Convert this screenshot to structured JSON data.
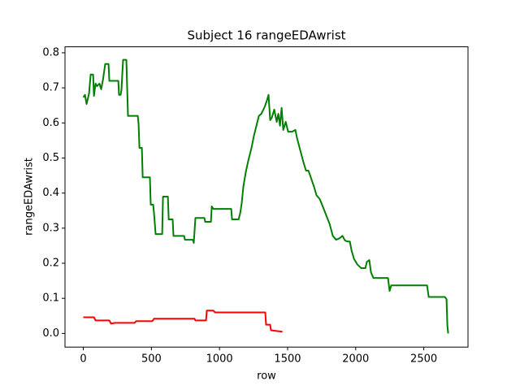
{
  "chart_data": {
    "type": "line",
    "title": "Subject 16 rangeEDAwrist",
    "x_label": "row",
    "y_label": "rangeEDAwrist",
    "xlim": [
      -134.5,
      2824.5
    ],
    "ylim": [
      -0.039,
      0.817
    ],
    "xticks": [
      0,
      500,
      1000,
      1500,
      2000,
      2500
    ],
    "yticks": [
      {
        "value": 0,
        "label": "0.0"
      },
      0.1,
      0.2,
      0.3,
      0.4,
      0.5,
      0.6,
      0.7,
      0.8
    ],
    "grid": false,
    "series": [
      {
        "color": "#008000",
        "x": [
          0,
          12,
          24,
          42,
          54,
          72,
          78,
          90,
          101,
          119,
          131,
          143,
          161,
          185,
          191,
          257,
          262,
          274,
          280,
          292,
          316,
          328,
          400,
          406,
          412,
          430,
          436,
          489,
          495,
          513,
          519,
          531,
          579,
          585,
          621,
          627,
          656,
          662,
          740,
          746,
          805,
          811,
          823,
          889,
          895,
          937,
          943,
          955,
          1086,
          1092,
          1140,
          1152,
          1163,
          1175,
          1193,
          1211,
          1235,
          1253,
          1271,
          1289,
          1307,
          1331,
          1348,
          1360,
          1372,
          1384,
          1402,
          1420,
          1432,
          1444,
          1456,
          1468,
          1486,
          1504,
          1533,
          1557,
          1569,
          1593,
          1617,
          1635,
          1653,
          1670,
          1694,
          1712,
          1736,
          1760,
          1784,
          1808,
          1832,
          1856,
          1880,
          1903,
          1921,
          1939,
          1957,
          1969,
          1987,
          2011,
          2041,
          2071,
          2082,
          2100,
          2112,
          2130,
          2237,
          2249,
          2261,
          2524,
          2536,
          2655,
          2667,
          2673,
          2679
        ],
        "values": [
          0.673,
          0.68,
          0.654,
          0.684,
          0.738,
          0.738,
          0.677,
          0.712,
          0.705,
          0.712,
          0.696,
          0.72,
          0.768,
          0.768,
          0.72,
          0.72,
          0.68,
          0.68,
          0.694,
          0.78,
          0.78,
          0.62,
          0.62,
          0.596,
          0.529,
          0.529,
          0.445,
          0.445,
          0.367,
          0.367,
          0.343,
          0.283,
          0.283,
          0.39,
          0.39,
          0.325,
          0.325,
          0.278,
          0.278,
          0.267,
          0.267,
          0.258,
          0.329,
          0.329,
          0.318,
          0.318,
          0.362,
          0.355,
          0.355,
          0.325,
          0.325,
          0.343,
          0.371,
          0.418,
          0.46,
          0.492,
          0.529,
          0.564,
          0.592,
          0.62,
          0.626,
          0.645,
          0.664,
          0.68,
          0.608,
          0.615,
          0.638,
          0.603,
          0.626,
          0.592,
          0.643,
          0.58,
          0.603,
          0.575,
          0.575,
          0.58,
          0.557,
          0.522,
          0.487,
          0.464,
          0.464,
          0.445,
          0.418,
          0.394,
          0.383,
          0.36,
          0.336,
          0.313,
          0.278,
          0.267,
          0.271,
          0.278,
          0.265,
          0.262,
          0.262,
          0.237,
          0.213,
          0.197,
          0.186,
          0.186,
          0.204,
          0.209,
          0.174,
          0.158,
          0.158,
          0.121,
          0.137,
          0.137,
          0.104,
          0.104,
          0.097,
          0.023,
          0.0
        ]
      },
      {
        "color": "#ff0000",
        "x": [
          0,
          78,
          90,
          191,
          203,
          233,
          376,
          388,
          507,
          519,
          817,
          823,
          901,
          907,
          955,
          967,
          1336,
          1342,
          1372,
          1378,
          1462
        ],
        "values": [
          0.046,
          0.046,
          0.037,
          0.037,
          0.028,
          0.03,
          0.03,
          0.035,
          0.035,
          0.042,
          0.042,
          0.037,
          0.037,
          0.065,
          0.065,
          0.06,
          0.06,
          0.025,
          0.025,
          0.009,
          0.005
        ]
      }
    ]
  }
}
